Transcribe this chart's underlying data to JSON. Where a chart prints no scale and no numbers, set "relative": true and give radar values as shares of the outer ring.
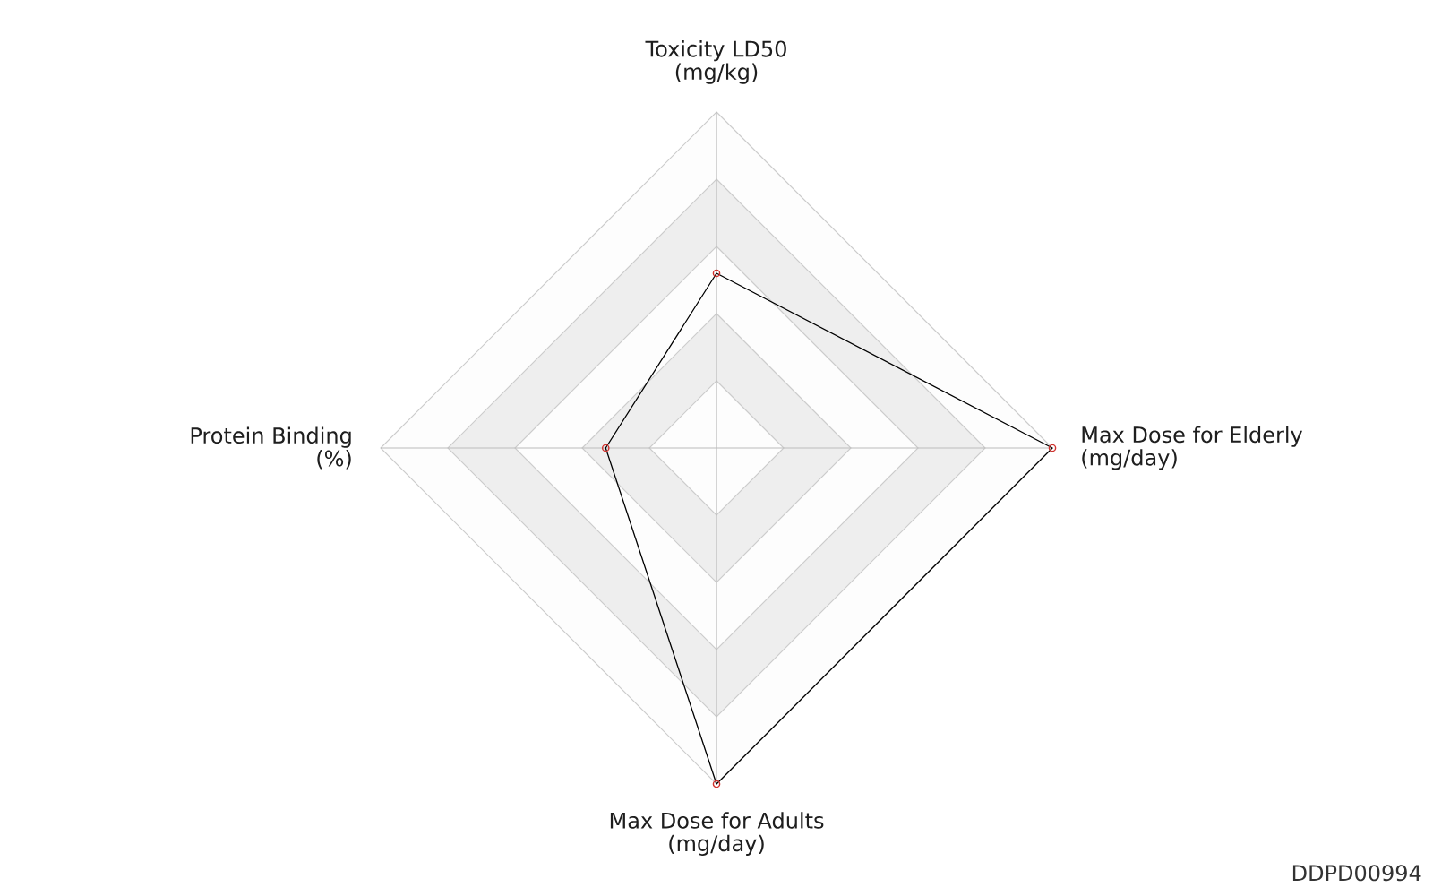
{
  "chart_data": {
    "type": "radar",
    "relative": true,
    "marker": "circle",
    "categories": [
      "Toxicity LD50 (mg/kg)",
      "Max Dose for Elderly (mg/day)",
      "Max Dose for Adults (mg/day)",
      "Protein Binding (%)"
    ],
    "series": [
      {
        "color": "#000000",
        "colors": [
          "#d0312d",
          "#d0312d",
          "#d0312d",
          "#d0312d"
        ],
        "values": [
          0.52,
          1,
          1,
          0.33
        ]
      }
    ],
    "annotations": [
      "DDPD00994"
    ]
  }
}
